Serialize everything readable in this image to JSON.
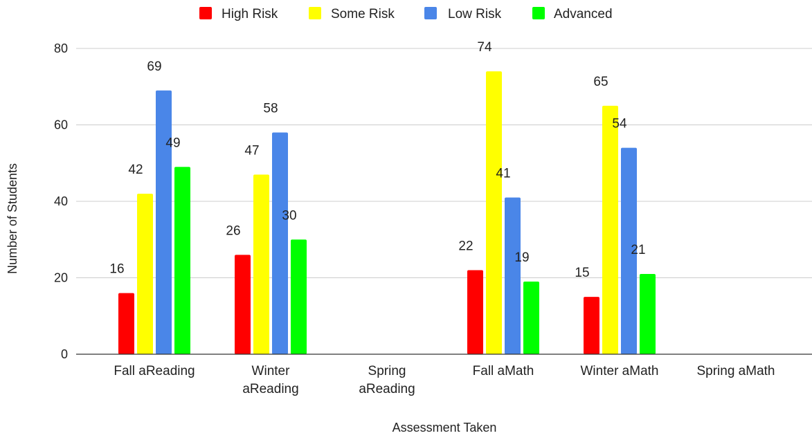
{
  "chart_data": {
    "type": "bar",
    "title": "",
    "xlabel": "Assessment Taken",
    "ylabel": "Number of Students",
    "ylim": [
      0,
      80
    ],
    "yticks": [
      "0",
      "20",
      "40",
      "60",
      "80"
    ],
    "grid": true,
    "legend_position": "top",
    "categories": [
      [
        "Fall aReading"
      ],
      [
        "Winter",
        "aReading"
      ],
      [
        "Spring",
        "aReading"
      ],
      [
        "Fall aMath"
      ],
      [
        "Winter aMath"
      ],
      [
        "Spring aMath"
      ]
    ],
    "series": [
      {
        "name": "High Risk",
        "color": "#ff0000",
        "values": [
          16,
          26,
          null,
          22,
          15,
          null
        ]
      },
      {
        "name": "Some Risk",
        "color": "#ffff00",
        "values": [
          42,
          47,
          null,
          74,
          65,
          null
        ]
      },
      {
        "name": "Low Risk",
        "color": "#4a86e8",
        "values": [
          69,
          58,
          null,
          41,
          54,
          null
        ]
      },
      {
        "name": "Advanced",
        "color": "#00ff00",
        "values": [
          49,
          30,
          null,
          19,
          21,
          null
        ]
      }
    ]
  }
}
